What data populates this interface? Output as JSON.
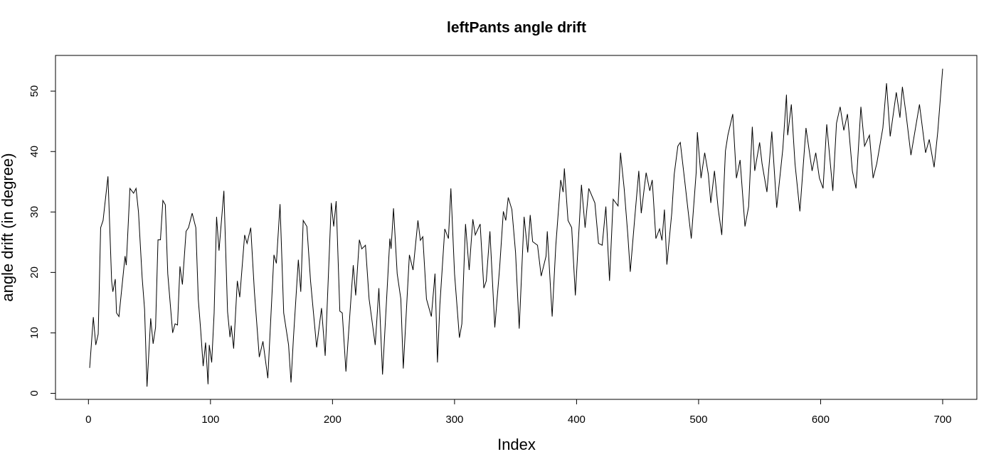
{
  "chart_data": {
    "type": "line",
    "title": "leftPants angle drift",
    "x_label": "Index",
    "y_label": "angle drift (in degree)",
    "x": [
      1,
      4,
      6,
      8,
      10,
      12,
      16,
      19,
      20,
      22,
      23,
      25,
      30,
      31,
      34,
      37,
      39,
      41,
      44,
      46,
      48,
      51,
      53,
      55,
      57,
      59,
      61,
      63,
      65,
      69,
      71,
      73,
      75,
      77,
      80,
      82,
      85,
      88,
      90,
      92,
      94,
      96,
      98,
      99,
      101,
      103,
      105,
      107,
      111,
      114,
      116,
      117,
      119,
      122,
      124,
      128,
      130,
      133,
      136,
      140,
      143,
      147,
      152,
      154,
      157,
      160,
      164,
      166,
      168,
      172,
      174,
      176,
      179,
      182,
      187,
      191,
      194,
      199,
      201,
      203,
      206,
      208,
      211,
      217,
      219,
      222,
      224,
      227,
      230,
      235,
      238,
      241,
      247,
      248,
      250,
      253,
      256,
      258,
      263,
      266,
      270,
      272,
      274,
      277,
      281,
      284,
      286,
      288,
      292,
      295,
      297,
      300,
      304,
      306,
      309,
      312,
      315,
      317,
      321,
      324,
      326,
      329,
      333,
      337,
      340,
      342,
      344,
      347,
      350,
      353,
      357,
      360,
      362,
      364,
      368,
      371,
      375,
      376,
      380,
      383,
      387,
      389,
      390,
      393,
      396,
      399,
      404,
      407,
      410,
      415,
      418,
      421,
      424,
      427,
      430,
      434,
      436,
      439,
      442,
      444,
      448,
      451,
      453,
      457,
      460,
      462,
      465,
      468,
      470,
      472,
      474,
      478,
      480,
      483,
      485,
      489,
      491,
      494,
      498,
      499,
      502,
      505,
      508,
      510,
      513,
      516,
      519,
      522,
      524,
      528,
      531,
      534,
      538,
      541,
      544,
      546,
      550,
      552,
      556,
      560,
      564,
      569,
      572,
      573,
      576,
      579,
      583,
      588,
      593,
      596,
      599,
      602,
      605,
      610,
      613,
      616,
      619,
      622,
      626,
      629,
      633,
      636,
      640,
      643,
      646,
      651,
      654,
      657,
      662,
      665,
      667,
      670,
      674,
      681,
      686,
      689,
      693,
      696,
      700
    ],
    "values": [
      4.2,
      12.6,
      8,
      9.8,
      27.4,
      28.6,
      35.9,
      18.6,
      16.8,
      18.9,
      13.3,
      12.7,
      22.7,
      21.2,
      33.9,
      33.1,
      33.9,
      30,
      19.2,
      13.9,
      1.1,
      12.4,
      8.2,
      10.9,
      25.4,
      25.4,
      31.9,
      31.2,
      19.8,
      10,
      11.5,
      11.3,
      21,
      18,
      26.8,
      27.4,
      29.8,
      27.4,
      15.6,
      10.4,
      4.5,
      8.4,
      1.5,
      8,
      5.1,
      13.3,
      29.2,
      23.6,
      33.5,
      13.5,
      9.3,
      11.2,
      7.4,
      18.6,
      15.9,
      26.2,
      24.8,
      27.4,
      16.8,
      6,
      8.6,
      2.5,
      22.9,
      21.5,
      31.3,
      13.3,
      8,
      1.8,
      9.2,
      22.1,
      16.8,
      28.6,
      27.6,
      18.6,
      7.6,
      14.1,
      6.2,
      31.5,
      27.6,
      31.8,
      13.6,
      13.3,
      3.6,
      21.2,
      16.2,
      25.4,
      23.9,
      24.5,
      15.6,
      8,
      17.4,
      3.1,
      25.6,
      23.9,
      30.6,
      19.8,
      15.6,
      4.1,
      22.9,
      20.4,
      28.6,
      25.3,
      25.9,
      15.6,
      12.7,
      19.8,
      5.1,
      14.7,
      27.2,
      25.6,
      33.9,
      19.8,
      9.2,
      11.5,
      28,
      20.4,
      28.8,
      26.2,
      28,
      17.4,
      18.6,
      26.8,
      10.9,
      20.9,
      30.1,
      28.6,
      32.4,
      30.4,
      23.3,
      10.7,
      29.2,
      23.3,
      29.5,
      25.1,
      24.5,
      19.4,
      22.7,
      26.8,
      12.7,
      24.5,
      35.3,
      33.3,
      37.2,
      28.6,
      27.4,
      16.2,
      34.5,
      27.4,
      33.9,
      31.5,
      24.8,
      24.5,
      30.9,
      18.6,
      32.1,
      31,
      39.8,
      33.9,
      26.2,
      20.1,
      29.8,
      36.8,
      29.8,
      36.5,
      33.5,
      35.3,
      25.6,
      27.2,
      25.3,
      30.4,
      21.3,
      29.8,
      36.2,
      40.9,
      41.5,
      34.5,
      30.9,
      25.6,
      36.5,
      43.2,
      35.6,
      39.8,
      36.2,
      31.5,
      36.8,
      30.6,
      26.2,
      40.1,
      42.7,
      46.2,
      35.6,
      38.6,
      27.6,
      30.9,
      44.1,
      36.8,
      41.5,
      38,
      33.3,
      43.3,
      30.7,
      40.4,
      49.4,
      42.7,
      47.8,
      38,
      30.1,
      43.9,
      36.8,
      39.8,
      35.6,
      33.9,
      44.5,
      33.5,
      44.7,
      47.4,
      43.5,
      46.2,
      36.8,
      33.9,
      47.4,
      40.9,
      42.7,
      35.6,
      38,
      43.9,
      51.3,
      42.5,
      49.8,
      45.6,
      50.7,
      46.2,
      39.4,
      47.8,
      39.8,
      42,
      37.4,
      43.3,
      53.7
    ],
    "color": "#000000",
    "xlim": [
      -27,
      728
    ],
    "ylim": [
      -1,
      55.9
    ],
    "xticks": [
      0,
      100,
      200,
      300,
      400,
      500,
      600,
      700
    ],
    "yticks": [
      0,
      10,
      20,
      30,
      40,
      50
    ]
  }
}
